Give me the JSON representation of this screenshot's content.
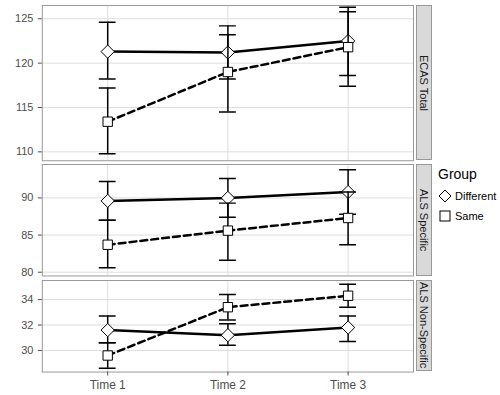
{
  "chart_data": [
    {
      "type": "line",
      "title": "ECAS Total",
      "categories": [
        "Time 1",
        "Time 2",
        "Time 3"
      ],
      "series": [
        {
          "name": "Different",
          "color": "#000000",
          "marker": "diamond",
          "line_style": "solid",
          "values": [
            121.3,
            121.2,
            122.5
          ],
          "lower": [
            118.2,
            118.2,
            118.6
          ],
          "upper": [
            124.6,
            124.2,
            126.3
          ]
        },
        {
          "name": "Same",
          "color": "#000000",
          "marker": "square",
          "line_style": "dashed",
          "values": [
            113.4,
            119.0,
            121.8
          ],
          "lower": [
            109.8,
            114.5,
            117.4
          ],
          "upper": [
            117.2,
            123.2,
            125.8
          ]
        }
      ],
      "ylim": [
        109,
        126.5
      ],
      "yticks": [
        110,
        115,
        120,
        125
      ],
      "grid": true,
      "legend": "right",
      "legend_title": "Group"
    },
    {
      "type": "line",
      "title": "ALS Specific",
      "categories": [
        "Time 1",
        "Time 2",
        "Time 3"
      ],
      "series": [
        {
          "name": "Different",
          "color": "#000000",
          "marker": "diamond",
          "line_style": "solid",
          "values": [
            89.6,
            90.0,
            90.8
          ],
          "lower": [
            87.0,
            87.4,
            87.8
          ],
          "upper": [
            92.2,
            92.6,
            93.8
          ]
        },
        {
          "name": "Same",
          "color": "#000000",
          "marker": "square",
          "line_style": "dashed",
          "values": [
            83.7,
            85.6,
            87.3
          ],
          "lower": [
            80.6,
            81.6,
            83.7
          ],
          "upper": [
            87.0,
            89.3,
            90.8
          ]
        }
      ],
      "ylim": [
        79.5,
        94.5
      ],
      "yticks": [
        80,
        85,
        90
      ],
      "grid": true
    },
    {
      "type": "line",
      "title": "ALS Non-Specific",
      "categories": [
        "Time 1",
        "Time 2",
        "Time 3"
      ],
      "series": [
        {
          "name": "Different",
          "color": "#000000",
          "marker": "diamond",
          "line_style": "solid",
          "values": [
            31.6,
            31.2,
            31.8
          ],
          "lower": [
            30.6,
            30.4,
            30.7
          ],
          "upper": [
            32.7,
            32.1,
            32.7
          ]
        },
        {
          "name": "Same",
          "color": "#000000",
          "marker": "square",
          "line_style": "dashed",
          "values": [
            29.6,
            33.4,
            34.3
          ],
          "lower": [
            28.6,
            32.4,
            33.4
          ],
          "upper": [
            30.6,
            34.4,
            35.2
          ]
        }
      ],
      "ylim": [
        28.3,
        35.5
      ],
      "yticks": [
        30,
        32,
        34
      ],
      "grid": true
    }
  ]
}
